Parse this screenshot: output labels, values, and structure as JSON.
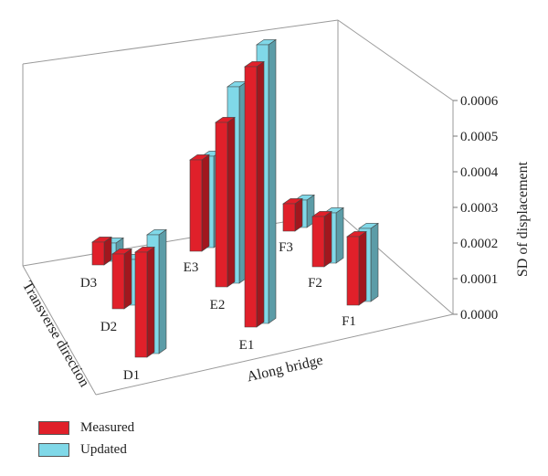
{
  "chart_data": {
    "type": "bar",
    "title": "",
    "xlabel": "Along bridge",
    "ylabel": "Transverse direction",
    "zlabel": "SD of displacement",
    "zlim": [
      0,
      0.0006
    ],
    "z_ticks": [
      "0.0000",
      "0.0001",
      "0.0002",
      "0.0003",
      "0.0004",
      "0.0005",
      "0.0006"
    ],
    "series": [
      {
        "name": "Measured",
        "color": "#e0202a"
      },
      {
        "name": "Updated",
        "color": "#80d8e8"
      }
    ],
    "points": [
      {
        "label": "D1",
        "measured": 0.00023,
        "updated": 0.00026
      },
      {
        "label": "D2",
        "measured": 0.00012,
        "updated": 0.0001
      },
      {
        "label": "D3",
        "measured": 5e-05,
        "updated": 4e-05
      },
      {
        "label": "E1",
        "measured": 0.00057,
        "updated": 0.00061
      },
      {
        "label": "E2",
        "measured": 0.00036,
        "updated": 0.00043
      },
      {
        "label": "E3",
        "measured": 0.0002,
        "updated": 0.0002
      },
      {
        "label": "F1",
        "measured": 0.00015,
        "updated": 0.00016
      },
      {
        "label": "F2",
        "measured": 0.00011,
        "updated": 0.00011
      },
      {
        "label": "F3",
        "measured": 6e-05,
        "updated": 6e-05
      }
    ]
  }
}
